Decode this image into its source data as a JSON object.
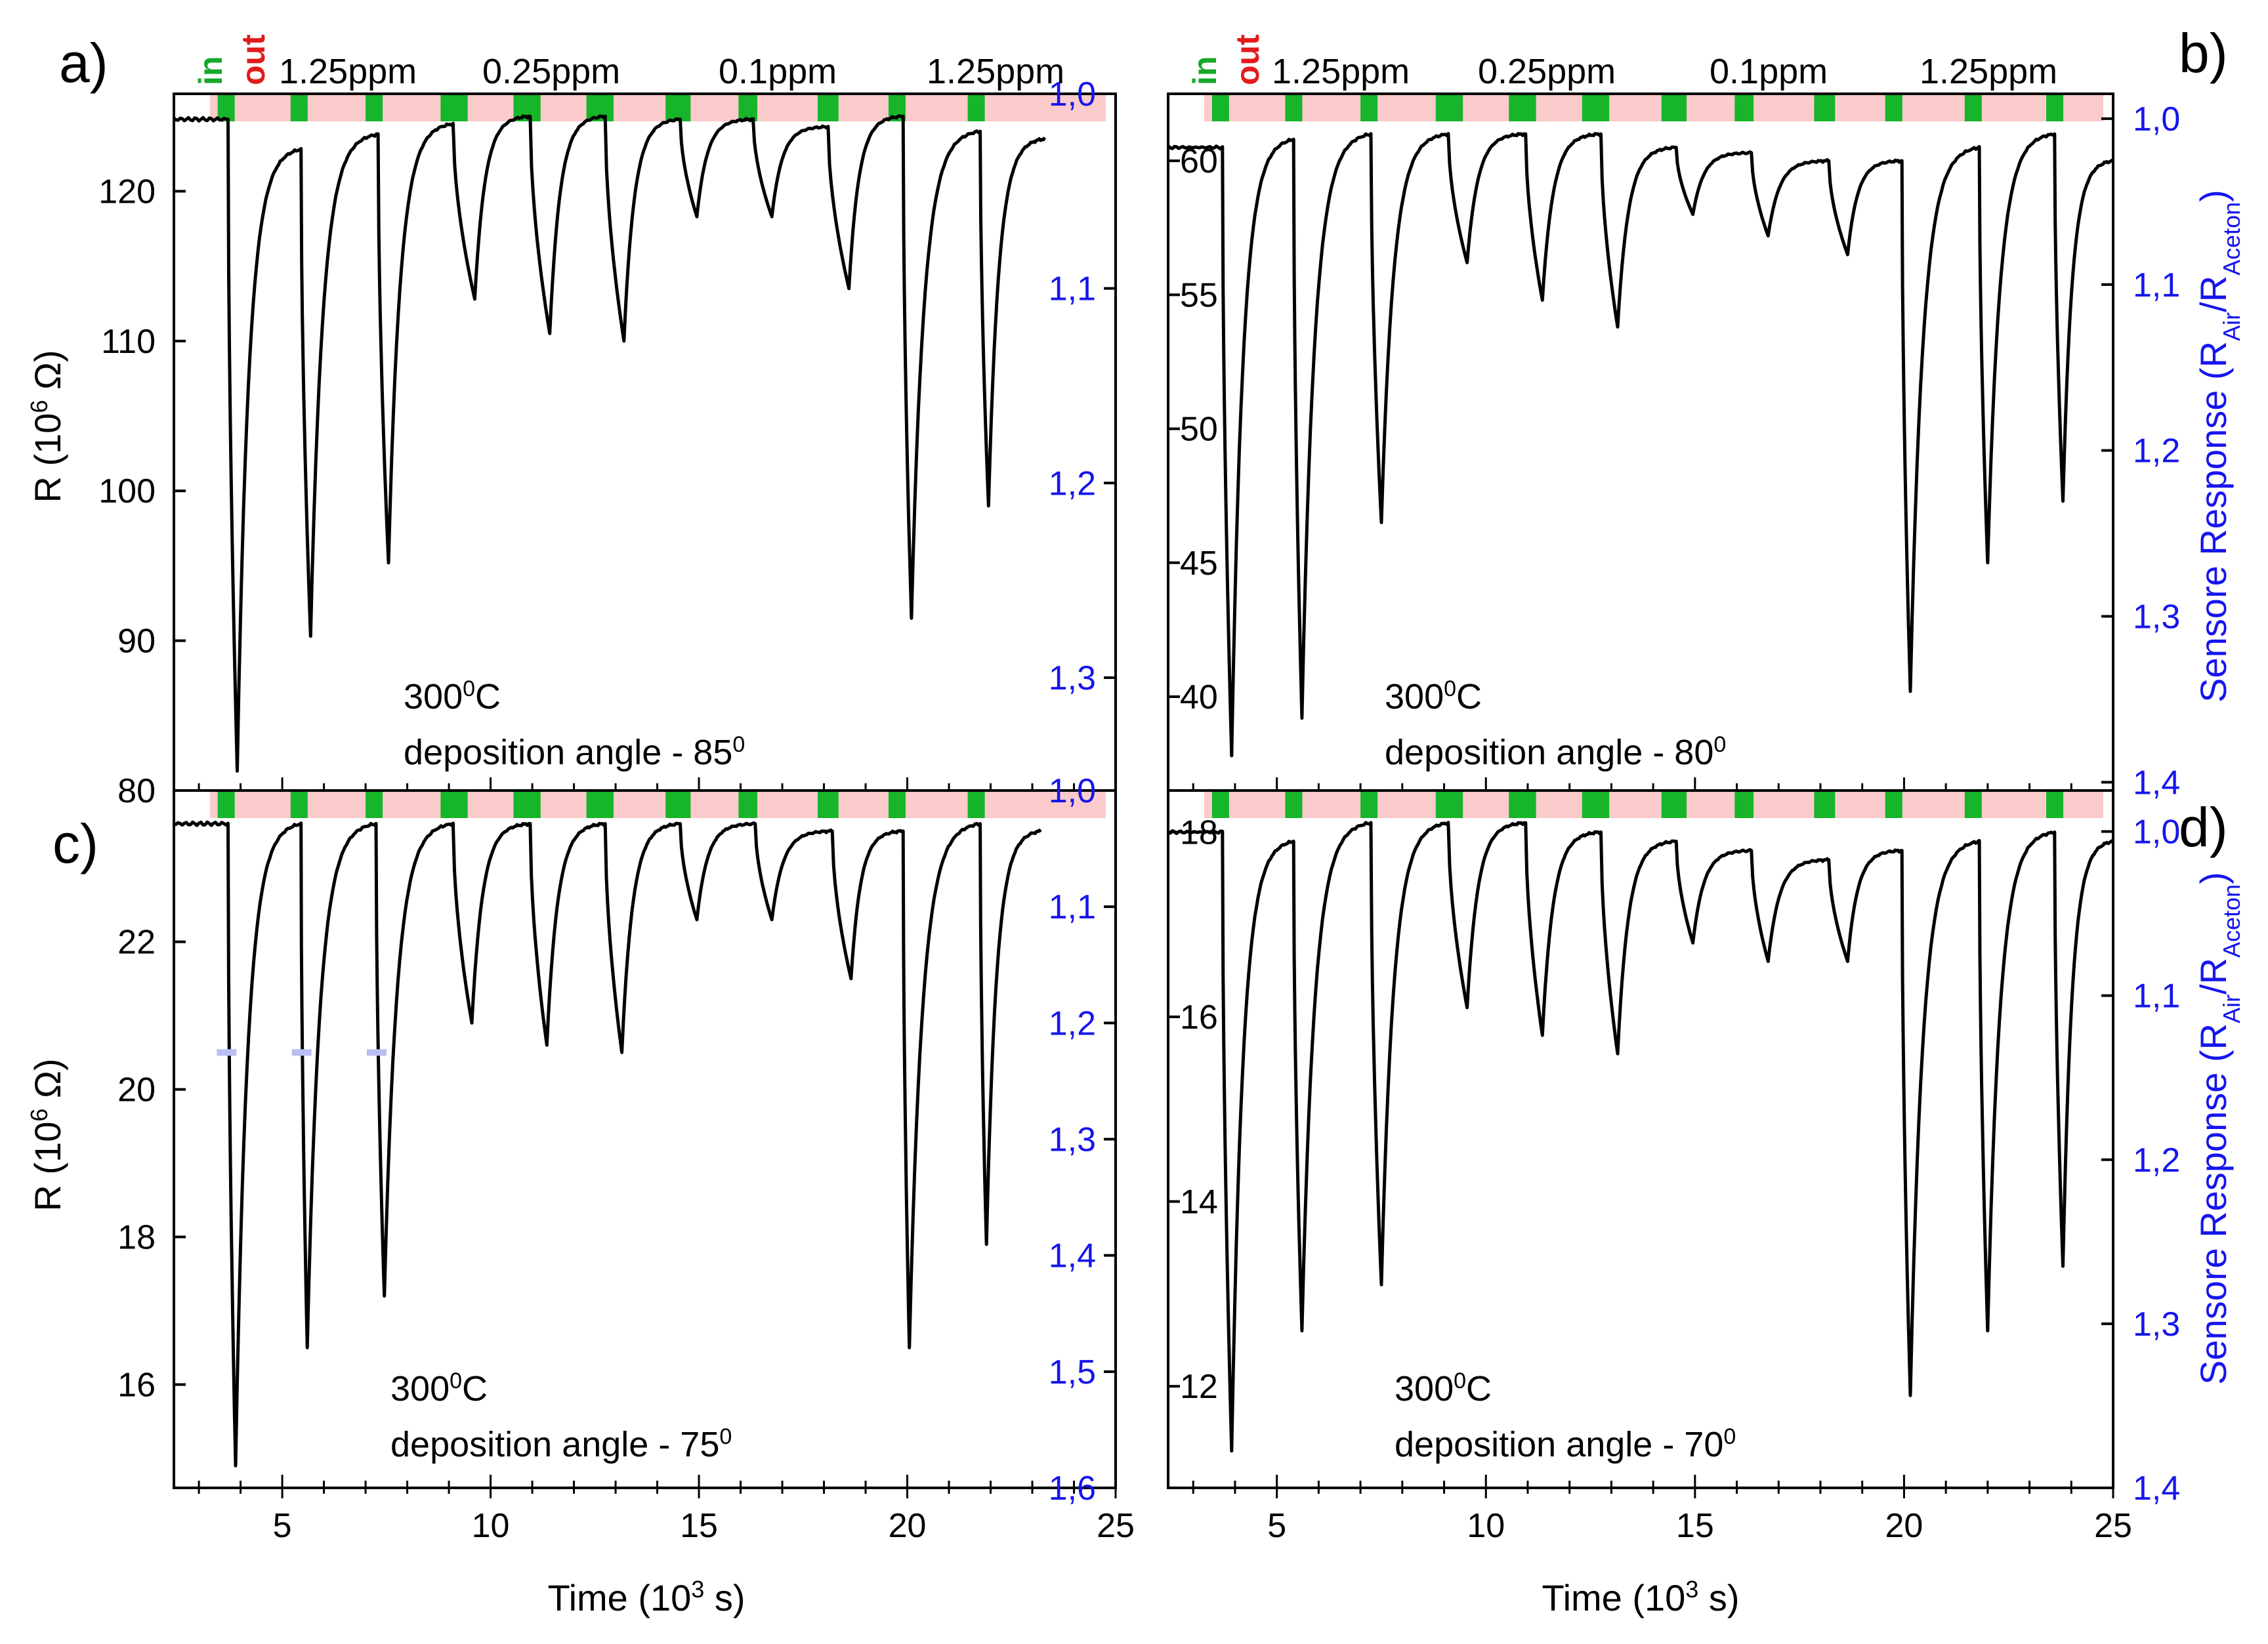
{
  "figure": {
    "x_label": "Time (10",
    "x_label_exp": "3",
    "x_label_tail": " s)",
    "y_left_label": "R (10",
    "y_left_label_exp": "6",
    "y_left_label_tail": " Ω)",
    "y_right_label": "Sensore Response (R",
    "y_right_label_sub1": "Air",
    "y_right_label_mid": "/R",
    "y_right_label_sub2": "Aceton",
    "y_right_label_tail": ")",
    "in_label": "in",
    "out_label": "out",
    "concentrations": [
      "1.25ppm",
      "0.25ppm",
      "0.1ppm",
      "1.25ppm"
    ],
    "temperature_label": "300",
    "temperature_exp": "0",
    "temperature_unit": "C",
    "colors": {
      "curve": "#000000",
      "on_gas": "#16b52a",
      "off_gas": "#fbcaca",
      "right_axis": "#1515ee",
      "marker": "#b9bef2"
    }
  },
  "chart_data": [
    {
      "panel": "a)",
      "type": "line",
      "deposition_label": "deposition angle - 85",
      "deposition_exp": "0",
      "xlim": [
        2.4,
        25
      ],
      "x_ticks": [
        "5",
        "10",
        "15",
        "20",
        "25"
      ],
      "ylim": [
        80,
        126.5
      ],
      "y_ticks": [
        120,
        110,
        100,
        90,
        80
      ],
      "y_tick_labels": [
        "120",
        "110",
        "100",
        "90",
        "80"
      ],
      "y2lim": [
        1.0,
        1.358
      ],
      "y2_ticks": [
        1.0,
        1.1,
        1.2,
        1.3
      ],
      "y2_tick_labels": [
        "1,0",
        "1,1",
        "1,2",
        "1,3"
      ],
      "baseline": 124.8,
      "gas_pulses": [
        [
          3.45,
          3.85
        ],
        [
          5.2,
          5.6
        ],
        [
          7.0,
          7.4
        ],
        [
          8.8,
          9.45
        ],
        [
          10.55,
          11.2
        ],
        [
          12.3,
          12.95
        ],
        [
          14.2,
          14.8
        ],
        [
          15.95,
          16.4
        ],
        [
          17.85,
          18.35
        ],
        [
          19.55,
          19.9
        ],
        [
          21.45,
          21.75
        ]
      ],
      "cycles": [
        {
          "t_in": 3.7,
          "t_min": 3.92,
          "min": 81.3,
          "t_rec": 5.45,
          "rec": 122.8
        },
        {
          "t_in": 5.45,
          "t_min": 5.68,
          "min": 90.3,
          "t_rec": 7.3,
          "rec": 123.8
        },
        {
          "t_in": 7.3,
          "t_min": 7.55,
          "min": 95.2,
          "t_rec": 9.1,
          "rec": 124.5
        },
        {
          "t_in": 9.1,
          "t_min": 9.62,
          "min": 112.8,
          "t_rec": 10.95,
          "rec": 125.0
        },
        {
          "t_in": 10.95,
          "t_min": 11.42,
          "min": 110.5,
          "t_rec": 12.75,
          "rec": 125.0
        },
        {
          "t_in": 12.75,
          "t_min": 13.2,
          "min": 110.0,
          "t_rec": 14.55,
          "rec": 124.8
        },
        {
          "t_in": 14.55,
          "t_min": 14.95,
          "min": 118.3,
          "t_rec": 16.3,
          "rec": 124.8
        },
        {
          "t_in": 16.3,
          "t_min": 16.75,
          "min": 118.3,
          "t_rec": 18.1,
          "rec": 124.3
        },
        {
          "t_in": 18.1,
          "t_min": 18.6,
          "min": 113.5,
          "t_rec": 19.9,
          "rec": 125.0
        },
        {
          "t_in": 19.9,
          "t_min": 20.1,
          "min": 91.5,
          "t_rec": 21.75,
          "rec": 124.0
        },
        {
          "t_in": 21.75,
          "t_min": 21.95,
          "min": 99.0,
          "t_rec": 23.3,
          "rec": 123.5
        }
      ],
      "t_end": 23.3
    },
    {
      "panel": "b)",
      "type": "line",
      "deposition_label": "deposition angle - 80",
      "deposition_exp": "0",
      "xlim": [
        2.4,
        25
      ],
      "x_ticks": [
        "5",
        "10",
        "15",
        "20",
        "25"
      ],
      "ylim": [
        36.5,
        62.5
      ],
      "y_ticks": [
        60,
        55,
        50,
        45,
        40
      ],
      "y_tick_labels": [
        "60",
        "55",
        "50",
        "45",
        "40"
      ],
      "y2lim": [
        0.985,
        1.405
      ],
      "y2_ticks": [
        1.0,
        1.1,
        1.2,
        1.3,
        1.4
      ],
      "y2_tick_labels": [
        "1,0",
        "1,1",
        "1,2",
        "1,3",
        "1,4"
      ],
      "baseline": 60.5,
      "gas_pulses": [
        [
          3.45,
          3.85
        ],
        [
          5.2,
          5.6
        ],
        [
          7.0,
          7.4
        ],
        [
          8.8,
          9.45
        ],
        [
          10.55,
          11.2
        ],
        [
          12.3,
          12.95
        ],
        [
          14.2,
          14.8
        ],
        [
          15.95,
          16.4
        ],
        [
          17.85,
          18.35
        ],
        [
          19.55,
          19.9
        ],
        [
          21.45,
          21.75
        ],
        [
          23.4,
          23.8
        ]
      ],
      "cycles": [
        {
          "t_in": 3.7,
          "t_min": 3.92,
          "min": 37.8,
          "t_rec": 5.4,
          "rec": 60.8
        },
        {
          "t_in": 5.4,
          "t_min": 5.6,
          "min": 39.2,
          "t_rec": 7.25,
          "rec": 61.0
        },
        {
          "t_in": 7.25,
          "t_min": 7.5,
          "min": 46.5,
          "t_rec": 9.1,
          "rec": 61.0
        },
        {
          "t_in": 9.1,
          "t_min": 9.55,
          "min": 56.2,
          "t_rec": 10.95,
          "rec": 61.0
        },
        {
          "t_in": 10.95,
          "t_min": 11.35,
          "min": 54.8,
          "t_rec": 12.75,
          "rec": 61.0
        },
        {
          "t_in": 12.75,
          "t_min": 13.15,
          "min": 53.8,
          "t_rec": 14.55,
          "rec": 60.5
        },
        {
          "t_in": 14.55,
          "t_min": 14.95,
          "min": 58.0,
          "t_rec": 16.35,
          "rec": 60.3
        },
        {
          "t_in": 16.35,
          "t_min": 16.75,
          "min": 57.2,
          "t_rec": 18.2,
          "rec": 60.0
        },
        {
          "t_in": 18.2,
          "t_min": 18.65,
          "min": 56.5,
          "t_rec": 19.95,
          "rec": 60.0
        },
        {
          "t_in": 19.95,
          "t_min": 20.15,
          "min": 40.2,
          "t_rec": 21.8,
          "rec": 60.5
        },
        {
          "t_in": 21.8,
          "t_min": 22.0,
          "min": 45.0,
          "t_rec": 23.6,
          "rec": 61.0
        },
        {
          "t_in": 23.6,
          "t_min": 23.8,
          "min": 47.3,
          "t_rec": 25.0,
          "rec": 60.0
        }
      ],
      "t_end": 25.0
    },
    {
      "panel": "c)",
      "type": "line",
      "deposition_label": "deposition angle - 75",
      "deposition_exp": "0",
      "xlim": [
        2.4,
        25
      ],
      "x_ticks": [
        "5",
        "10",
        "15",
        "20",
        "25"
      ],
      "ylim": [
        14.6,
        24.05
      ],
      "y_ticks": [
        22,
        20,
        18,
        16
      ],
      "y_tick_labels": [
        "22",
        "20",
        "18",
        "16"
      ],
      "y2lim": [
        1.0,
        1.6
      ],
      "y2_ticks": [
        1.0,
        1.1,
        1.2,
        1.3,
        1.4,
        1.5,
        1.6
      ],
      "y2_tick_labels": [
        "1,0",
        "1,1",
        "1,2",
        "1,3",
        "1,4",
        "1,5",
        "1,6"
      ],
      "baseline": 23.6,
      "markers": [
        {
          "t": 3.65,
          "v": 20.5
        },
        {
          "t": 5.45,
          "v": 20.5
        },
        {
          "t": 7.25,
          "v": 20.5
        }
      ],
      "gas_pulses": [
        [
          3.45,
          3.85
        ],
        [
          5.2,
          5.6
        ],
        [
          7.0,
          7.4
        ],
        [
          8.8,
          9.45
        ],
        [
          10.55,
          11.2
        ],
        [
          12.3,
          12.95
        ],
        [
          14.2,
          14.8
        ],
        [
          15.95,
          16.4
        ],
        [
          17.85,
          18.35
        ],
        [
          19.55,
          19.9
        ],
        [
          21.45,
          21.75
        ]
      ],
      "cycles": [
        {
          "t_in": 3.7,
          "t_min": 3.88,
          "min": 14.9,
          "t_rec": 5.45,
          "rec": 23.6
        },
        {
          "t_in": 5.45,
          "t_min": 5.6,
          "min": 16.5,
          "t_rec": 7.25,
          "rec": 23.6
        },
        {
          "t_in": 7.25,
          "t_min": 7.45,
          "min": 17.2,
          "t_rec": 9.1,
          "rec": 23.6
        },
        {
          "t_in": 9.1,
          "t_min": 9.55,
          "min": 20.9,
          "t_rec": 10.95,
          "rec": 23.6
        },
        {
          "t_in": 10.95,
          "t_min": 11.35,
          "min": 20.6,
          "t_rec": 12.75,
          "rec": 23.6
        },
        {
          "t_in": 12.75,
          "t_min": 13.15,
          "min": 20.5,
          "t_rec": 14.55,
          "rec": 23.6
        },
        {
          "t_in": 14.55,
          "t_min": 14.95,
          "min": 22.3,
          "t_rec": 16.35,
          "rec": 23.6
        },
        {
          "t_in": 16.35,
          "t_min": 16.75,
          "min": 22.3,
          "t_rec": 18.2,
          "rec": 23.5
        },
        {
          "t_in": 18.2,
          "t_min": 18.65,
          "min": 21.5,
          "t_rec": 19.9,
          "rec": 23.5
        },
        {
          "t_in": 19.9,
          "t_min": 20.05,
          "min": 16.5,
          "t_rec": 21.75,
          "rec": 23.6
        },
        {
          "t_in": 21.75,
          "t_min": 21.9,
          "min": 17.9,
          "t_rec": 23.2,
          "rec": 23.5
        }
      ],
      "t_end": 23.2
    },
    {
      "panel": "d)",
      "type": "line",
      "deposition_label": "deposition angle - 70",
      "deposition_exp": "0",
      "xlim": [
        2.4,
        25
      ],
      "x_ticks": [
        "5",
        "10",
        "15",
        "20",
        "25"
      ],
      "ylim": [
        10.9,
        18.45
      ],
      "y_ticks": [
        18,
        16,
        14,
        12
      ],
      "y_tick_labels": [
        "18",
        "16",
        "14",
        "12"
      ],
      "y2lim": [
        0.975,
        1.4
      ],
      "y2_ticks": [
        1.0,
        1.1,
        1.2,
        1.3,
        1.4
      ],
      "y2_tick_labels": [
        "1,0",
        "1,1",
        "1,2",
        "1,3",
        "1,4"
      ],
      "baseline": 18.0,
      "gas_pulses": [
        [
          3.45,
          3.85
        ],
        [
          5.2,
          5.6
        ],
        [
          7.0,
          7.4
        ],
        [
          8.8,
          9.45
        ],
        [
          10.55,
          11.2
        ],
        [
          12.3,
          12.95
        ],
        [
          14.2,
          14.8
        ],
        [
          15.95,
          16.4
        ],
        [
          17.85,
          18.35
        ],
        [
          19.55,
          19.9
        ],
        [
          21.45,
          21.75
        ],
        [
          23.4,
          23.8
        ]
      ],
      "cycles": [
        {
          "t_in": 3.7,
          "t_min": 3.92,
          "min": 11.3,
          "t_rec": 5.4,
          "rec": 17.9
        },
        {
          "t_in": 5.4,
          "t_min": 5.6,
          "min": 12.6,
          "t_rec": 7.25,
          "rec": 18.1
        },
        {
          "t_in": 7.25,
          "t_min": 7.5,
          "min": 13.1,
          "t_rec": 9.1,
          "rec": 18.1
        },
        {
          "t_in": 9.1,
          "t_min": 9.55,
          "min": 16.1,
          "t_rec": 10.95,
          "rec": 18.1
        },
        {
          "t_in": 10.95,
          "t_min": 11.35,
          "min": 15.8,
          "t_rec": 12.75,
          "rec": 18.0
        },
        {
          "t_in": 12.75,
          "t_min": 13.15,
          "min": 15.6,
          "t_rec": 14.55,
          "rec": 17.9
        },
        {
          "t_in": 14.55,
          "t_min": 14.95,
          "min": 16.8,
          "t_rec": 16.35,
          "rec": 17.8
        },
        {
          "t_in": 16.35,
          "t_min": 16.75,
          "min": 16.6,
          "t_rec": 18.2,
          "rec": 17.7
        },
        {
          "t_in": 18.2,
          "t_min": 18.65,
          "min": 16.6,
          "t_rec": 19.95,
          "rec": 17.8
        },
        {
          "t_in": 19.95,
          "t_min": 20.15,
          "min": 11.9,
          "t_rec": 21.8,
          "rec": 17.9
        },
        {
          "t_in": 21.8,
          "t_min": 22.0,
          "min": 12.6,
          "t_rec": 23.6,
          "rec": 18.0
        },
        {
          "t_in": 23.6,
          "t_min": 23.8,
          "min": 13.3,
          "t_rec": 25.0,
          "rec": 17.9
        }
      ],
      "t_end": 25.0
    }
  ]
}
